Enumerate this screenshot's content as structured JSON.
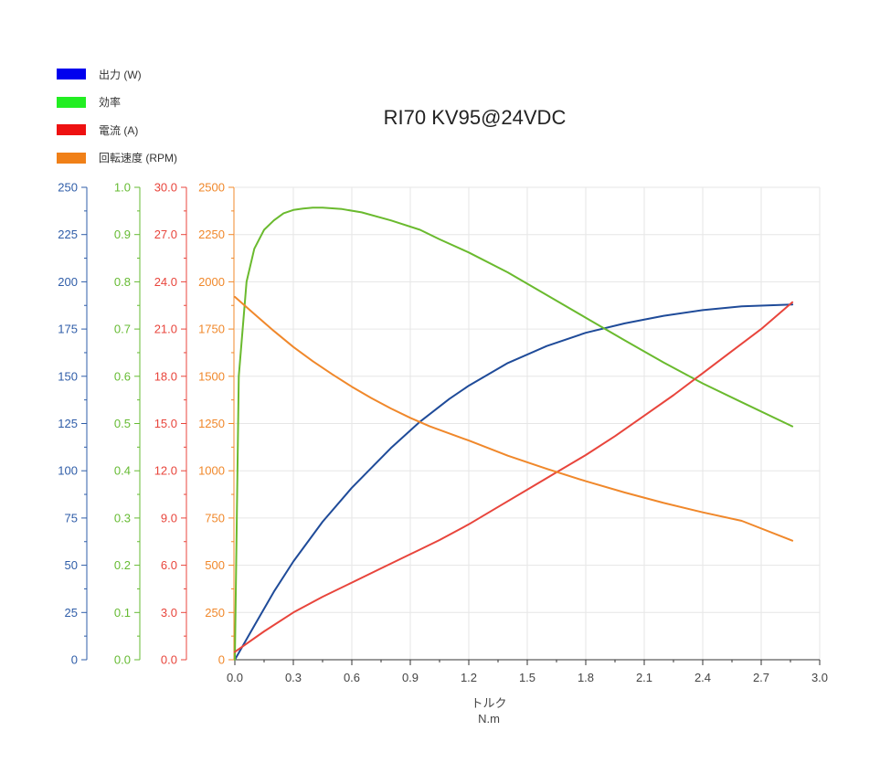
{
  "chart_data": {
    "type": "line",
    "title": "RI70 KV95@24VDC",
    "xlabel": "トルク",
    "xunit": "N.m",
    "xlim": [
      0,
      3.0
    ],
    "xticks": [
      "0.0",
      "0.3",
      "0.6",
      "0.9",
      "1.2",
      "1.5",
      "1.8",
      "2.1",
      "2.4",
      "2.7",
      "3.0"
    ],
    "axes": [
      {
        "id": "power",
        "color": "#2f5da8",
        "lim": [
          0,
          250
        ],
        "ticks": [
          "0",
          "25",
          "50",
          "75",
          "100",
          "125",
          "150",
          "175",
          "200",
          "225",
          "250"
        ]
      },
      {
        "id": "eff",
        "color": "#66bb33",
        "lim": [
          0,
          1.0
        ],
        "ticks": [
          "0.0",
          "0.1",
          "0.2",
          "0.3",
          "0.4",
          "0.5",
          "0.6",
          "0.7",
          "0.8",
          "0.9",
          "1.0"
        ]
      },
      {
        "id": "current",
        "color": "#e8453c",
        "lim": [
          0,
          30
        ],
        "ticks": [
          "0.0",
          "3.0",
          "6.0",
          "9.0",
          "12.0",
          "15.0",
          "18.0",
          "21.0",
          "24.0",
          "27.0",
          "30.0"
        ]
      },
      {
        "id": "rpm",
        "color": "#f0882b",
        "lim": [
          0,
          2500
        ],
        "ticks": [
          "0",
          "250",
          "500",
          "750",
          "1000",
          "1250",
          "1500",
          "1750",
          "2000",
          "2250",
          "2500"
        ]
      }
    ],
    "series": [
      {
        "name": "出力 (W)",
        "axis": "power",
        "color": "#1f4b99",
        "legend_color": "#0000ee",
        "x": [
          0,
          0.1,
          0.2,
          0.3,
          0.45,
          0.6,
          0.8,
          0.95,
          1.1,
          1.2,
          1.4,
          1.6,
          1.8,
          2.0,
          2.2,
          2.4,
          2.6,
          2.86
        ],
        "y": [
          0,
          18,
          36,
          52,
          73,
          91,
          112,
          126,
          138,
          145,
          157,
          166,
          173,
          178,
          182,
          185,
          187,
          188
        ]
      },
      {
        "name": "効率",
        "axis": "eff",
        "color": "#6aba2e",
        "legend_color": "#22ee22",
        "x": [
          0,
          0.02,
          0.06,
          0.1,
          0.15,
          0.2,
          0.25,
          0.3,
          0.35,
          0.4,
          0.45,
          0.55,
          0.65,
          0.8,
          0.95,
          1.05,
          1.2,
          1.4,
          1.6,
          1.8,
          2.0,
          2.2,
          2.4,
          2.6,
          2.86
        ],
        "y": [
          0,
          0.6,
          0.8,
          0.87,
          0.91,
          0.93,
          0.945,
          0.952,
          0.955,
          0.957,
          0.957,
          0.954,
          0.947,
          0.93,
          0.91,
          0.89,
          0.862,
          0.82,
          0.772,
          0.724,
          0.676,
          0.629,
          0.585,
          0.545,
          0.494
        ]
      },
      {
        "name": "電流 (A)",
        "axis": "current",
        "color": "#e8453c",
        "legend_color": "#ee1111",
        "x": [
          0,
          0.15,
          0.3,
          0.45,
          0.6,
          0.75,
          0.9,
          0.95,
          1.05,
          1.2,
          1.35,
          1.5,
          1.65,
          1.8,
          1.95,
          2.1,
          2.25,
          2.4,
          2.55,
          2.7,
          2.86
        ],
        "y": [
          0.5,
          1.8,
          3.0,
          4.0,
          4.9,
          5.8,
          6.7,
          7.0,
          7.6,
          8.6,
          9.7,
          10.8,
          11.9,
          13.0,
          14.2,
          15.5,
          16.8,
          18.2,
          19.6,
          21.0,
          22.7
        ]
      },
      {
        "name": "回転速度 (RPM)",
        "axis": "rpm",
        "color": "#f0882b",
        "legend_color": "#f08018",
        "x": [
          0,
          0.1,
          0.2,
          0.3,
          0.4,
          0.5,
          0.6,
          0.7,
          0.8,
          0.9,
          1.0,
          1.2,
          1.4,
          1.6,
          1.8,
          2.0,
          2.2,
          2.4,
          2.6,
          2.86
        ],
        "y": [
          1920,
          1830,
          1740,
          1655,
          1580,
          1510,
          1445,
          1385,
          1330,
          1280,
          1235,
          1160,
          1080,
          1010,
          945,
          885,
          830,
          780,
          735,
          630
        ]
      }
    ]
  }
}
